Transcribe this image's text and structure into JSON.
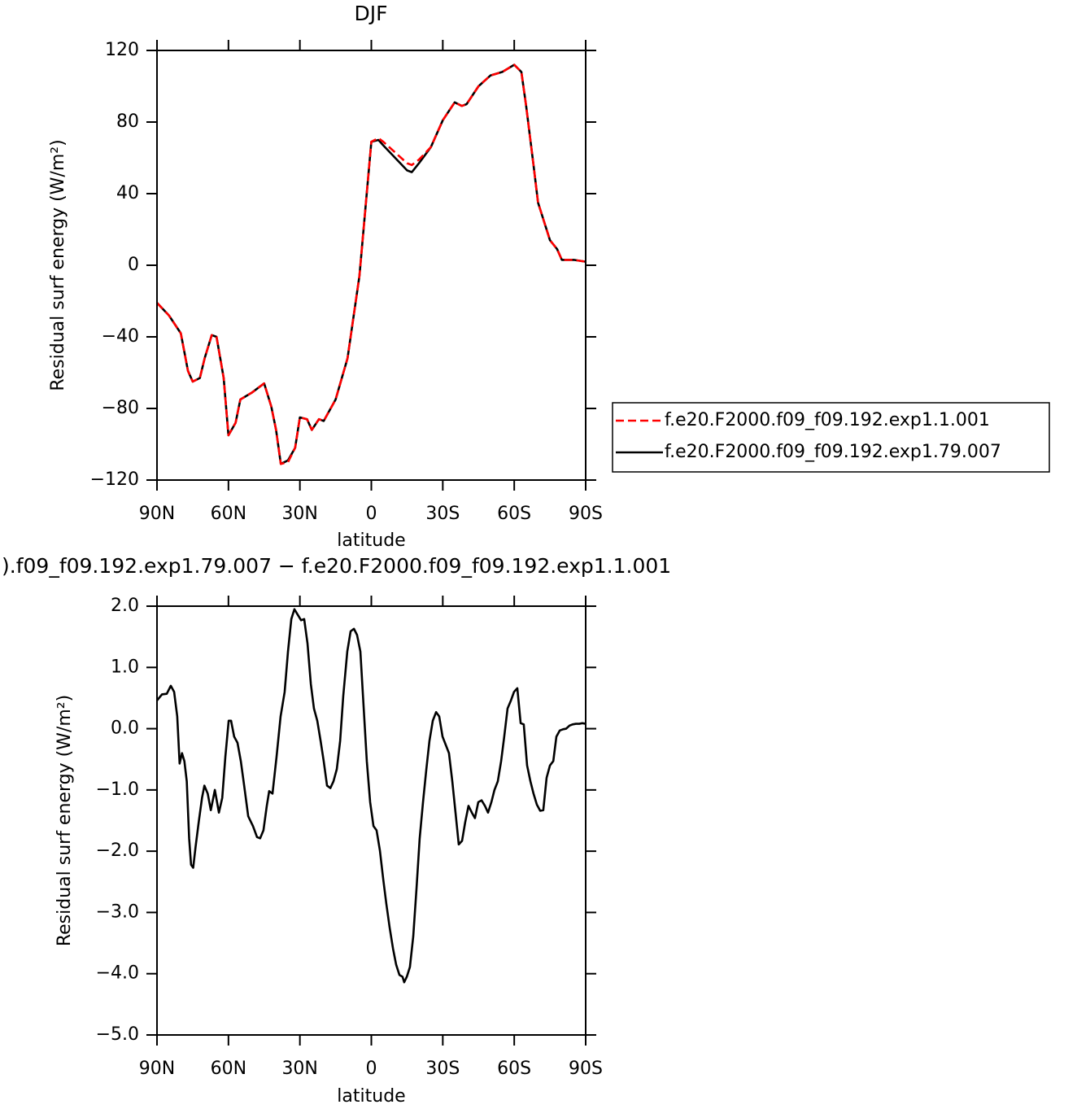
{
  "chart_data": [
    {
      "type": "line",
      "title": "DJF",
      "xlabel": "latitude",
      "ylabel": "Residual surf energy (W/m²)",
      "x": [
        -90,
        -85,
        -80,
        -77,
        -75,
        -72,
        -70,
        -67,
        -65,
        -62,
        -60,
        -57,
        -55,
        -50,
        -45,
        -42,
        -40,
        -38,
        -35,
        -32,
        -30,
        -27,
        -25,
        -22,
        -20,
        -15,
        -10,
        -5,
        -2,
        0,
        3,
        5,
        10,
        15,
        17,
        20,
        25,
        30,
        35,
        38,
        40,
        45,
        50,
        55,
        60,
        63,
        65,
        68,
        70,
        75,
        78,
        80,
        85,
        90
      ],
      "series": [
        {
          "name": "f.e20.F2000.f09_f09.192.exp1.1.001",
          "color": "#ff0000",
          "linestyle": "dashed",
          "values": [
            -21,
            -28,
            -38,
            -59,
            -65,
            -63,
            -52,
            -39,
            -40,
            -63,
            -95,
            -88,
            -75,
            -71,
            -66,
            -79,
            -92,
            -111,
            -110,
            -102,
            -85,
            -86,
            -92,
            -86,
            -87,
            -75,
            -52,
            -6,
            39,
            69,
            71,
            69,
            63,
            57,
            56,
            59,
            66,
            81,
            91,
            89,
            90,
            100,
            106,
            108,
            112,
            108,
            89,
            57,
            35,
            14,
            9,
            3,
            3,
            2
          ]
        },
        {
          "name": "f.e20.F2000.f09_f09.192.exp1.79.007",
          "color": "#000000",
          "linestyle": "solid",
          "values": [
            -21,
            -28,
            -38,
            -59,
            -65,
            -63,
            -52,
            -39,
            -40,
            -63,
            -95,
            -88,
            -75,
            -71,
            -66,
            -79,
            -92,
            -111,
            -109,
            -102,
            -85,
            -86,
            -92,
            -86,
            -87,
            -75,
            -52,
            -6,
            39,
            69,
            70,
            67,
            60,
            53,
            52,
            57,
            66,
            81,
            91,
            89,
            90,
            100,
            106,
            108,
            112,
            108,
            89,
            57,
            35,
            14,
            9,
            3,
            3,
            2
          ]
        }
      ],
      "xlim": [
        -90,
        90
      ],
      "ylim": [
        -120,
        120
      ],
      "xticks": [
        {
          "value": -90,
          "label": "90N"
        },
        {
          "value": -60,
          "label": "60N"
        },
        {
          "value": -30,
          "label": "30N"
        },
        0,
        {
          "value": 30,
          "label": "30S"
        },
        {
          "value": 60,
          "label": "60S"
        },
        {
          "value": 90,
          "label": "90S"
        }
      ],
      "yticks": [
        {
          "value": -120,
          "label": "−120"
        },
        {
          "value": -80,
          "label": "−80"
        },
        {
          "value": -40,
          "label": "−40"
        },
        0,
        40,
        80,
        120
      ],
      "legend": "right"
    },
    {
      "type": "line",
      "title": ").f09_f09.192.exp1.79.007 − f.e20.F2000.f09_f09.192.exp1.1.001",
      "xlabel": "latitude",
      "ylabel": "Residual surf energy (W/m²)",
      "x": [
        -90,
        -87.9,
        -85.9,
        -84.2,
        -82.8,
        -81.5,
        -80.5,
        -79.5,
        -78.5,
        -77.5,
        -76.5,
        -75.7,
        -74.8,
        -73.8,
        -72.5,
        -71.1,
        -70.1,
        -68.7,
        -67.4,
        -65.7,
        -64,
        -62.6,
        -61.3,
        -59.9,
        -58.9,
        -57.6,
        -56.2,
        -54.8,
        -53.4,
        -51.7,
        -49.7,
        -48,
        -46.7,
        -45.3,
        -43.9,
        -42.9,
        -41.5,
        -39.8,
        -38.1,
        -36.4,
        -35,
        -33.6,
        -32.3,
        -30.9,
        -29.5,
        -28.2,
        -26.8,
        -25.4,
        -24.1,
        -22.7,
        -21.3,
        -20,
        -18.6,
        -17.2,
        -15.9,
        -14.5,
        -13.1,
        -11.8,
        -10.1,
        -8.7,
        -7.3,
        -6,
        -4.6,
        -3.2,
        -1.9,
        -0.5,
        0.9,
        2.2,
        3.6,
        5,
        6.3,
        7.7,
        9.1,
        10.4,
        11.8,
        13.1,
        13.8,
        14.9,
        16.2,
        17.6,
        19,
        20.3,
        21.7,
        23.1,
        24.4,
        25.8,
        27.2,
        28.5,
        29.9,
        31.3,
        32.6,
        34,
        35.4,
        36.7,
        38.1,
        39.4,
        40.8,
        42.2,
        43.5,
        44.9,
        46.3,
        47.7,
        49,
        50.4,
        51.7,
        53.1,
        54.5,
        55.8,
        57.2,
        58.6,
        59.9,
        61.3,
        62.7,
        64,
        65.4,
        66.8,
        68.1,
        69.5,
        70.9,
        72.2,
        73.6,
        75,
        76.4,
        77.7,
        79.1,
        80.5,
        81.8,
        83.2,
        84.5,
        85.9,
        87.3,
        88.6,
        90
      ],
      "values": [
        0.46,
        0.56,
        0.57,
        0.7,
        0.6,
        0.2,
        -0.57,
        -0.4,
        -0.53,
        -0.86,
        -1.79,
        -2.22,
        -2.27,
        -1.93,
        -1.53,
        -1.13,
        -0.93,
        -1.06,
        -1.33,
        -1.0,
        -1.37,
        -1.13,
        -0.46,
        0.13,
        0.13,
        -0.13,
        -0.23,
        -0.53,
        -0.93,
        -1.43,
        -1.59,
        -1.77,
        -1.79,
        -1.66,
        -1.26,
        -1.02,
        -1.06,
        -0.46,
        0.2,
        0.6,
        1.26,
        1.79,
        1.95,
        1.86,
        1.77,
        1.79,
        1.39,
        0.73,
        0.33,
        0.13,
        -0.2,
        -0.53,
        -0.93,
        -0.97,
        -0.86,
        -0.66,
        -0.2,
        0.53,
        1.26,
        1.59,
        1.63,
        1.53,
        1.26,
        0.33,
        -0.53,
        -1.2,
        -1.59,
        -1.66,
        -1.99,
        -2.46,
        -2.86,
        -3.25,
        -3.59,
        -3.85,
        -4.02,
        -4.05,
        -4.14,
        -4.05,
        -3.89,
        -3.39,
        -2.59,
        -1.79,
        -1.2,
        -0.66,
        -0.2,
        0.13,
        0.27,
        0.2,
        -0.13,
        -0.27,
        -0.4,
        -0.86,
        -1.39,
        -1.89,
        -1.83,
        -1.53,
        -1.26,
        -1.37,
        -1.46,
        -1.2,
        -1.17,
        -1.26,
        -1.37,
        -1.2,
        -1.0,
        -0.86,
        -0.53,
        -0.13,
        0.33,
        0.46,
        0.6,
        0.66,
        0.09,
        0.07,
        -0.6,
        -0.86,
        -1.06,
        -1.24,
        -1.34,
        -1.33,
        -0.8,
        -0.6,
        -0.53,
        -0.13,
        -0.03,
        -0.01,
        0.0,
        0.05,
        0.07,
        0.08,
        0.08,
        0.09,
        0.08
      ],
      "color": "#000000",
      "linestyle": "solid",
      "xlim": [
        -90,
        90
      ],
      "ylim": [
        -5,
        2
      ],
      "xticks": [
        {
          "value": -90,
          "label": "90N"
        },
        {
          "value": -60,
          "label": "60N"
        },
        {
          "value": -30,
          "label": "30N"
        },
        0,
        {
          "value": 30,
          "label": "30S"
        },
        {
          "value": 60,
          "label": "60S"
        },
        {
          "value": 90,
          "label": "90S"
        }
      ],
      "yticks": [
        {
          "value": -5,
          "label": "−5.0"
        },
        {
          "value": -4,
          "label": "−4.0"
        },
        {
          "value": -3,
          "label": "−3.0"
        },
        {
          "value": -2,
          "label": "−2.0"
        },
        {
          "value": -1,
          "label": "−1.0"
        },
        {
          "value": 0,
          "label": "0.0"
        },
        {
          "value": 1,
          "label": "1.0"
        },
        {
          "value": 2,
          "label": "2.0"
        }
      ]
    }
  ]
}
